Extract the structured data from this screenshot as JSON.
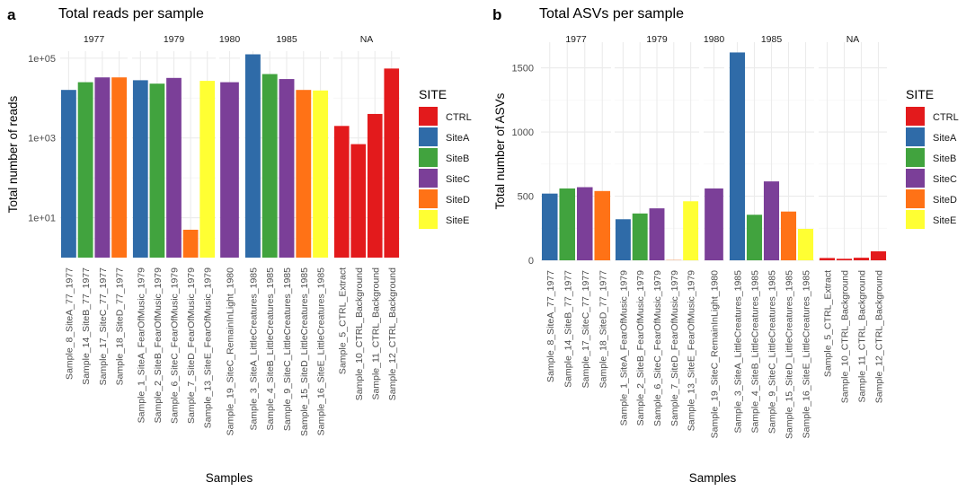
{
  "figure": {
    "site_colors": {
      "CTRL": "#E31A1C",
      "SiteA": "#2F6BA8",
      "SiteB": "#41A33E",
      "SiteC": "#7B3F98",
      "SiteD": "#FF7216",
      "SiteE": "#FFFF33"
    },
    "legend_title": "SITE",
    "legend_items": [
      "CTRL",
      "SiteA",
      "SiteB",
      "SiteC",
      "SiteD",
      "SiteE"
    ],
    "facets": [
      "1977",
      "1979",
      "1980",
      "1985",
      "NA"
    ]
  },
  "chart_data": [
    {
      "panel_label": "a",
      "type": "bar",
      "title": "Total reads per sample",
      "xlabel": "Samples",
      "ylabel": "Total number of reads",
      "y_scale": "log10",
      "ylim": [
        1,
        150000
      ],
      "y_ticks": [
        10,
        1000,
        100000
      ],
      "y_tick_labels": [
        "1e+01",
        "1e+03",
        "1e+05"
      ],
      "grid": true,
      "legend": "right",
      "facets": [
        {
          "label": "1977",
          "samples": [
            {
              "name": "Sample_8_SiteA_77_1977",
              "site": "SiteA",
              "value": 16000
            },
            {
              "name": "Sample_14_SiteB_77_1977",
              "site": "SiteB",
              "value": 25000
            },
            {
              "name": "Sample_17_SiteC_77_1977",
              "site": "SiteC",
              "value": 33000
            },
            {
              "name": "Sample_18_SiteD_77_1977",
              "site": "SiteD",
              "value": 33000
            }
          ]
        },
        {
          "label": "1979",
          "samples": [
            {
              "name": "Sample_1_SiteA_FearOfMusic_1979",
              "site": "SiteA",
              "value": 28000
            },
            {
              "name": "Sample_2_SiteB_FearOfMusic_1979",
              "site": "SiteB",
              "value": 23000
            },
            {
              "name": "Sample_6_SiteC_FearOfMusic_1979",
              "site": "SiteC",
              "value": 32000
            },
            {
              "name": "Sample_7_SiteD_FearOfMusic_1979",
              "site": "SiteD",
              "value": 5
            },
            {
              "name": "Sample_13_SiteE_FearOfMusic_1979",
              "site": "SiteE",
              "value": 27000
            }
          ]
        },
        {
          "label": "1980",
          "samples": [
            {
              "name": "Sample_19_SiteC_RemainInLight_1980",
              "site": "SiteC",
              "value": 25000
            }
          ]
        },
        {
          "label": "1985",
          "samples": [
            {
              "name": "Sample_3_SiteA_LittleCreatures_1985",
              "site": "SiteA",
              "value": 125000
            },
            {
              "name": "Sample_4_SiteB_LittleCreatures_1985",
              "site": "SiteB",
              "value": 40000
            },
            {
              "name": "Sample_9_SiteC_LittleCreatures_1985",
              "site": "SiteC",
              "value": 30000
            },
            {
              "name": "Sample_15_SiteD_LittleCreatures_1985",
              "site": "SiteD",
              "value": 16000
            },
            {
              "name": "Sample_16_SiteE_LittleCreatures_1985",
              "site": "SiteE",
              "value": 15500
            }
          ]
        },
        {
          "label": "NA",
          "samples": [
            {
              "name": "Sample_5_CTRL_Extract",
              "site": "CTRL",
              "value": 2000
            },
            {
              "name": "Sample_10_CTRL_Background",
              "site": "CTRL",
              "value": 700
            },
            {
              "name": "Sample_11_CTRL_Background",
              "site": "CTRL",
              "value": 4000
            },
            {
              "name": "Sample_12_CTRL_Background",
              "site": "CTRL",
              "value": 55000
            }
          ]
        }
      ]
    },
    {
      "panel_label": "b",
      "type": "bar",
      "title": "Total ASVs per sample",
      "xlabel": "Samples",
      "ylabel": "Total number of ASVs",
      "y_scale": "linear",
      "ylim": [
        0,
        1700
      ],
      "y_ticks": [
        0,
        500,
        1000,
        1500
      ],
      "y_tick_labels": [
        "0",
        "500",
        "1000",
        "1500"
      ],
      "grid": true,
      "legend": "right",
      "facets": [
        {
          "label": "1977",
          "samples": [
            {
              "name": "Sample_8_SiteA_77_1977",
              "site": "SiteA",
              "value": 520
            },
            {
              "name": "Sample_14_SiteB_77_1977",
              "site": "SiteB",
              "value": 560
            },
            {
              "name": "Sample_17_SiteC_77_1977",
              "site": "SiteC",
              "value": 570
            },
            {
              "name": "Sample_18_SiteD_77_1977",
              "site": "SiteD",
              "value": 540
            }
          ]
        },
        {
          "label": "1979",
          "samples": [
            {
              "name": "Sample_1_SiteA_FearOfMusic_1979",
              "site": "SiteA",
              "value": 320
            },
            {
              "name": "Sample_2_SiteB_FearOfMusic_1979",
              "site": "SiteB",
              "value": 365
            },
            {
              "name": "Sample_6_SiteC_FearOfMusic_1979",
              "site": "SiteC",
              "value": 405
            },
            {
              "name": "Sample_7_SiteD_FearOfMusic_1979",
              "site": "SiteD",
              "value": 2
            },
            {
              "name": "Sample_13_SiteE_FearOfMusic_1979",
              "site": "SiteE",
              "value": 460
            }
          ]
        },
        {
          "label": "1980",
          "samples": [
            {
              "name": "Sample_19_SiteC_RemainInLight_1980",
              "site": "SiteC",
              "value": 560
            }
          ]
        },
        {
          "label": "1985",
          "samples": [
            {
              "name": "Sample_3_SiteA_LittleCreatures_1985",
              "site": "SiteA",
              "value": 1620
            },
            {
              "name": "Sample_4_SiteB_LittleCreatures_1985",
              "site": "SiteB",
              "value": 355
            },
            {
              "name": "Sample_9_SiteC_LittleCreatures_1985",
              "site": "SiteC",
              "value": 615
            },
            {
              "name": "Sample_15_SiteD_LittleCreatures_1985",
              "site": "SiteD",
              "value": 380
            },
            {
              "name": "Sample_16_SiteE_LittleCreatures_1985",
              "site": "SiteE",
              "value": 245
            }
          ]
        },
        {
          "label": "NA",
          "samples": [
            {
              "name": "Sample_5_CTRL_Extract",
              "site": "CTRL",
              "value": 18
            },
            {
              "name": "Sample_10_CTRL_Background",
              "site": "CTRL",
              "value": 12
            },
            {
              "name": "Sample_11_CTRL_Background",
              "site": "CTRL",
              "value": 20
            },
            {
              "name": "Sample_12_CTRL_Background",
              "site": "CTRL",
              "value": 70
            }
          ]
        }
      ]
    }
  ]
}
